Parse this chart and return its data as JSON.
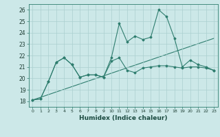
{
  "title": "",
  "xlabel": "Humidex (Indice chaleur)",
  "xlim": [
    -0.5,
    23.5
  ],
  "ylim": [
    17.5,
    26.5
  ],
  "xticks": [
    0,
    1,
    2,
    3,
    4,
    5,
    6,
    7,
    8,
    9,
    10,
    11,
    12,
    13,
    14,
    15,
    16,
    17,
    18,
    19,
    20,
    21,
    22,
    23
  ],
  "yticks": [
    18,
    19,
    20,
    21,
    22,
    23,
    24,
    25,
    26
  ],
  "bg_color": "#cce8e8",
  "line_color": "#2e7d6e",
  "grid_color": "#aacfcf",
  "line1": [
    18.1,
    18.2,
    19.7,
    21.4,
    21.8,
    21.2,
    20.1,
    20.3,
    20.3,
    20.1,
    21.8,
    24.8,
    23.2,
    23.7,
    23.4,
    23.6,
    26.0,
    25.4,
    23.5,
    21.0,
    21.6,
    21.2,
    21.0,
    20.7
  ],
  "line2": [
    18.1,
    18.2,
    19.7,
    21.4,
    21.8,
    21.2,
    20.1,
    20.3,
    20.3,
    20.1,
    21.5,
    21.8,
    20.7,
    20.5,
    20.9,
    21.0,
    21.1,
    21.1,
    21.0,
    20.9,
    21.0,
    21.0,
    20.9,
    20.7
  ],
  "line3_x": [
    0,
    23
  ],
  "line3_y": [
    18.1,
    23.5
  ]
}
